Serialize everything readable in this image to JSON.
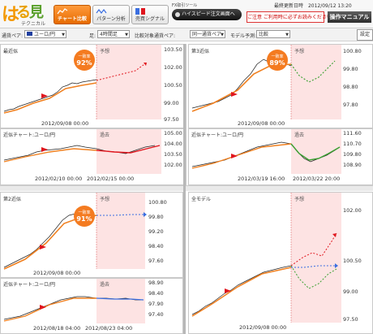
{
  "header": {
    "logo_main": "は",
    "logo_mid": "る",
    "logo_end": "見",
    "logo_sub": "テクニカル",
    "nav": [
      {
        "label": "チャート比較"
      },
      {
        "label": "パターン分析"
      },
      {
        "label": "売買シグナル"
      }
    ],
    "highspeed_title": "FX取引ツール",
    "highspeed_button": "ハイスピード注文画面へ",
    "updated_label": "最終更新日時",
    "updated_value": "2012/09/12 13:20",
    "notice_button": "ご注意 ご利用時に必ずお読みください",
    "manual_button": "操作マニュアル"
  },
  "toolbar": {
    "pair_label": "通貨ペア:",
    "pair_value": "ユーロ/円",
    "period_label": "足:",
    "period_value": "4時間足",
    "compare_label": "比較対象通貨ペア:",
    "compare_value": "同一通貨ペア",
    "model_label": "モデル予測:",
    "model_value": "比較",
    "settings_button": "設定"
  },
  "panels": {
    "p1": {
      "title": "最近似",
      "badge_top": "一致率",
      "badge_value": "92%",
      "forecast": "予想",
      "prices": [
        "103.50",
        "102.00",
        "100.50",
        "99.00",
        "97.50"
      ],
      "date": "2012/09/08 00:00"
    },
    "p1s": {
      "title": "近似チャート:ユーロ/円",
      "past": "過去",
      "prices": [
        "105.00",
        "104.00",
        "103.50",
        "102.00"
      ],
      "date1": "2012/02/10 00:00",
      "date2": "2012/02/15 00:00"
    },
    "p2": {
      "title": "第3近似",
      "badge_top": "一致率",
      "badge_value": "89%",
      "forecast": "予想",
      "prices": [
        "100.80",
        "99.80",
        "98.80",
        "97.80"
      ],
      "date": "2012/09/08 00:00"
    },
    "p2s": {
      "title": "近似チャート:ユーロ/円",
      "past": "過去",
      "prices": [
        "111.60",
        "110.70",
        "109.80",
        "108.90"
      ],
      "date1": "2012/03/19 16:00",
      "date2": "2012/03/22 20:00"
    },
    "p3": {
      "title": "第2近似",
      "badge_top": "一致率",
      "badge_value": "91%",
      "forecast": "予想",
      "prices": [
        "100.80",
        "99.80",
        "99.20",
        "98.40",
        "97.60"
      ],
      "date": "2012/09/08 00:00"
    },
    "p3s": {
      "title": "近似チャート:ユーロ/円",
      "past": "過去",
      "prices": [
        "98.90",
        "98.40",
        "97.90",
        "97.40"
      ],
      "date1": "2012/08/18 04:00",
      "date2": "2012/08/23 04:00"
    },
    "p4": {
      "title": "全モデル",
      "forecast": "予想",
      "prices": [
        "102.00",
        "100.50",
        "99.00",
        "97.50"
      ],
      "date": "2012/09/08 00:00"
    }
  },
  "colors": {
    "accent": "#f47b20",
    "forecast_zone": "#fde3e3",
    "ma_line": "#f08020",
    "red_forecast": "#e0151d",
    "green_forecast": "#39a030",
    "blue_forecast": "#3a6ee0"
  }
}
